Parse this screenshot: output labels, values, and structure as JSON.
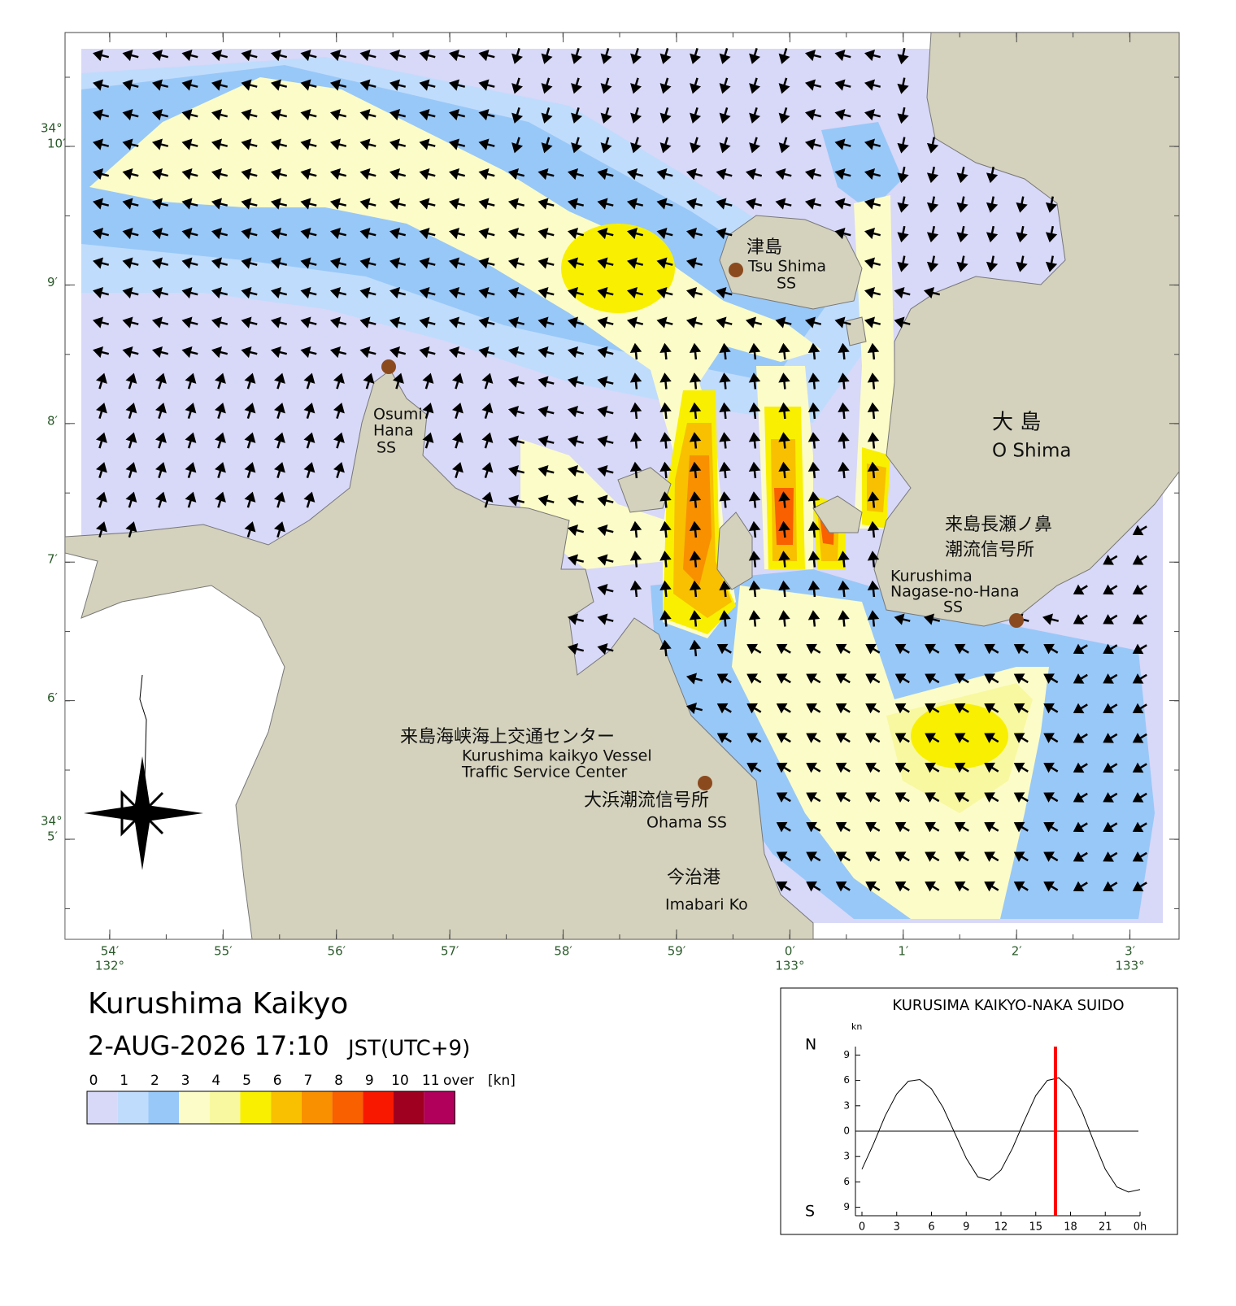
{
  "title": "Kurushima Kaikyo",
  "datetime": "2-AUG-2026 17:10",
  "timezone": "JST(UTC+9)",
  "legend": {
    "bounds": [
      0,
      1,
      2,
      3,
      4,
      5,
      6,
      7,
      8,
      9,
      10,
      11
    ],
    "over": "over",
    "unit": "[kn]",
    "colors": [
      "#d8d8f8",
      "#c0dcfc",
      "#98c8f8",
      "#fcfcc8",
      "#f8f8a0",
      "#f8f000",
      "#f8c000",
      "#f89000",
      "#f86000",
      "#f81800",
      "#a00020",
      "#b0005c"
    ]
  },
  "lat_labels": [
    {
      "deg": "34°",
      "min": "10′"
    },
    {
      "min": "9′"
    },
    {
      "min": "8′"
    },
    {
      "min": "7′"
    },
    {
      "min": "6′"
    },
    {
      "deg": "34°",
      "min": "5′"
    }
  ],
  "lon_labels": [
    {
      "min": "54′",
      "deg": "132°"
    },
    {
      "min": "55′"
    },
    {
      "min": "56′"
    },
    {
      "min": "57′"
    },
    {
      "min": "58′"
    },
    {
      "min": "59′"
    },
    {
      "min": "0′",
      "deg": "133°"
    },
    {
      "min": "1′"
    },
    {
      "min": "2′"
    },
    {
      "min": "3′",
      "deg": "133°"
    }
  ],
  "places": [
    {
      "lines": [
        "津島",
        "Tsu Shima",
        "SS"
      ]
    },
    {
      "lines": [
        "Osumi",
        "Hana",
        "SS"
      ]
    },
    {
      "lines": [
        "大 島",
        "O Shima"
      ]
    },
    {
      "lines": [
        "来島長瀬ノ鼻",
        "潮流信号所",
        "Kurushima",
        "Nagase-no-Hana",
        "SS"
      ]
    },
    {
      "lines": [
        "来島海峡海上交通センター",
        "Kurushima kaikyo Vessel",
        "Traffic Service Center"
      ]
    },
    {
      "lines": [
        "大浜潮流信号所",
        "Ohama SS"
      ]
    },
    {
      "lines": [
        "今治港",
        "Imabari Ko"
      ]
    }
  ],
  "chart_data": {
    "type": "line",
    "title": "KURUSIMA KAIKYO-NAKA SUIDO",
    "y_unit": "kn",
    "north": "N",
    "south": "S",
    "x": [
      0,
      1,
      2,
      3,
      4,
      5,
      6,
      7,
      8,
      9,
      10,
      11,
      12,
      13,
      14,
      15,
      16,
      17,
      18,
      19,
      20,
      21,
      22,
      23,
      24
    ],
    "values": [
      -4.5,
      -1.5,
      1.8,
      4.4,
      5.9,
      6.1,
      5.0,
      2.8,
      -0.2,
      -3.2,
      -5.4,
      -5.8,
      -4.6,
      -2.0,
      1.2,
      4.2,
      6.0,
      6.3,
      5.0,
      2.3,
      -1.2,
      -4.5,
      -6.6,
      -7.2,
      -6.9
    ],
    "color": "#000000",
    "marker_x": 16.7,
    "marker_color": "#ff0000",
    "xlim": [
      0,
      24
    ],
    "xticks": [
      0,
      3,
      6,
      9,
      12,
      15,
      18,
      21,
      {
        "value": 24,
        "label": "0h"
      }
    ],
    "ylim": [
      -10,
      10
    ],
    "yticks": [
      9,
      6,
      3,
      0,
      {
        "value": -3,
        "label": "3"
      },
      {
        "value": -6,
        "label": "6"
      },
      {
        "value": -9,
        "label": "9"
      }
    ]
  }
}
